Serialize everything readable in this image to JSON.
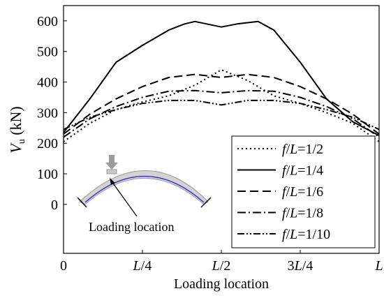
{
  "chart_data": {
    "type": "line",
    "xlabel": "Loading location",
    "ylabel_main": "V",
    "ylabel_sub": "u",
    "ylabel_unit": " (kN)",
    "x_ticks": [
      {
        "value": 0,
        "label": "0"
      },
      {
        "value": 0.25,
        "label": "L/4"
      },
      {
        "value": 0.5,
        "label": "L/2"
      },
      {
        "value": 0.75,
        "label": "3L/4"
      },
      {
        "value": 1,
        "label": "L"
      }
    ],
    "y_ticks": [
      0,
      100,
      200,
      300,
      400,
      500,
      600
    ],
    "xlim": [
      0,
      1
    ],
    "ylim": [
      -160,
      650
    ],
    "legend_position": "bottom-right",
    "series": [
      {
        "name": "f/L=1/2",
        "dash": "2,4",
        "x": [
          0,
          0.0833,
          0.1667,
          0.25,
          0.3333,
          0.4167,
          0.5,
          0.5833,
          0.6667,
          0.75,
          0.8333,
          0.9167,
          1
        ],
        "y": [
          205,
          265,
          310,
          335,
          355,
          390,
          440,
          405,
          355,
          330,
          300,
          265,
          205
        ]
      },
      {
        "name": "f/L=1/4",
        "dash": "",
        "x": [
          0,
          0.0833,
          0.1667,
          0.25,
          0.3333,
          0.3833,
          0.4167,
          0.5,
          0.55,
          0.6167,
          0.6667,
          0.75,
          0.8333,
          0.9167,
          1
        ],
        "y": [
          235,
          345,
          465,
          520,
          570,
          590,
          598,
          580,
          590,
          598,
          570,
          465,
          345,
          270,
          225
        ]
      },
      {
        "name": "f/L=1/6",
        "dash": "12,6",
        "x": [
          0,
          0.0833,
          0.1667,
          0.25,
          0.3333,
          0.4167,
          0.5,
          0.5833,
          0.6667,
          0.75,
          0.8333,
          0.9167,
          1
        ],
        "y": [
          230,
          295,
          345,
          385,
          415,
          425,
          415,
          425,
          415,
          385,
          345,
          295,
          230
        ]
      },
      {
        "name": "f/L=1/8",
        "dash": "12,4,2,4",
        "x": [
          0,
          0.0833,
          0.1667,
          0.25,
          0.3333,
          0.4167,
          0.5,
          0.5833,
          0.6667,
          0.75,
          0.8333,
          0.9167,
          1
        ],
        "y": [
          220,
          280,
          320,
          350,
          370,
          372,
          365,
          372,
          370,
          350,
          320,
          280,
          220
        ]
      },
      {
        "name": "f/L=1/10",
        "dash": "10,3,2,3,2,3",
        "x": [
          0,
          0.0833,
          0.1667,
          0.25,
          0.3333,
          0.4167,
          0.5,
          0.5833,
          0.6667,
          0.75,
          0.8333,
          0.9167,
          1
        ],
        "y": [
          245,
          285,
          310,
          330,
          340,
          340,
          325,
          340,
          340,
          330,
          310,
          285,
          245
        ]
      }
    ]
  },
  "inset": {
    "label": "Loading location"
  }
}
